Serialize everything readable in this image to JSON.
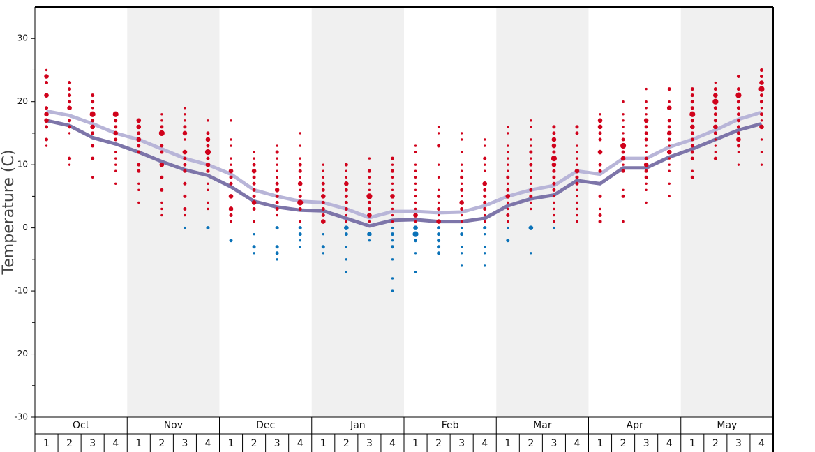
{
  "chart_data": {
    "type": "dot-strip",
    "y_label": "Temperature (C)",
    "ylim": [
      -30,
      35
    ],
    "yticks": [
      -30,
      -20,
      -10,
      0,
      10,
      20,
      30
    ],
    "minor_yticks": [
      -25,
      -15,
      -5,
      5,
      15,
      25
    ],
    "months": [
      "Oct",
      "Nov",
      "Dec",
      "Jan",
      "Feb",
      "Mar",
      "Apr",
      "May"
    ],
    "week_labels": [
      "1",
      "2",
      "3",
      "4"
    ],
    "shade_color": "#f0f0f0",
    "warm_color": "#d0021b",
    "cold_color": "#0a72b8",
    "lines": [
      {
        "color": "#b8b5d8",
        "values": [
          18.5,
          17.8,
          16.5,
          15.0,
          14.0,
          12.5,
          11.0,
          10.0,
          8.5,
          6.0,
          5.0,
          4.2,
          4.0,
          3.0,
          1.6,
          2.6,
          2.6,
          2.4,
          2.5,
          3.5,
          5.0,
          6.0,
          6.7,
          9.0,
          8.5,
          11.0,
          11.0,
          12.8,
          14.0,
          15.5,
          17.2,
          18.3
        ]
      },
      {
        "color": "#7d75a9",
        "values": [
          17.0,
          16.2,
          14.3,
          13.3,
          12.0,
          10.5,
          9.2,
          8.3,
          6.5,
          4.2,
          3.3,
          2.8,
          2.7,
          1.5,
          0.3,
          1.2,
          1.3,
          1.0,
          1.0,
          1.5,
          3.5,
          4.6,
          5.2,
          7.5,
          7.0,
          9.5,
          9.5,
          11.2,
          12.5,
          14.0,
          15.5,
          16.5
        ]
      }
    ],
    "weeks": [
      {
        "values": [
          25,
          24,
          23,
          21,
          19,
          18,
          17,
          16,
          14,
          13
        ],
        "sizes": [
          1,
          3,
          2,
          3,
          2,
          3,
          3,
          2,
          2,
          1
        ]
      },
      {
        "values": [
          23,
          22,
          21,
          20,
          19,
          17,
          16,
          15,
          11,
          10
        ],
        "sizes": [
          2,
          2,
          2,
          2,
          3,
          2,
          2,
          1,
          2,
          1
        ]
      },
      {
        "values": [
          21,
          20,
          19,
          18,
          17,
          16,
          15,
          13,
          11,
          8
        ],
        "sizes": [
          2,
          2,
          1,
          4,
          2,
          3,
          2,
          2,
          2,
          1
        ]
      },
      {
        "values": [
          18,
          17,
          16,
          15,
          14,
          12,
          11,
          10,
          9,
          7
        ],
        "sizes": [
          4,
          2,
          2,
          3,
          2,
          1,
          1,
          1,
          1,
          1
        ]
      },
      {
        "values": [
          17,
          16,
          15,
          14,
          13,
          12,
          10,
          9,
          7,
          6,
          4
        ],
        "sizes": [
          3,
          3,
          2,
          3,
          2,
          2,
          2,
          2,
          1,
          1,
          1
        ]
      },
      {
        "values": [
          18,
          17,
          16,
          15,
          13,
          12,
          10,
          8,
          6,
          4,
          3,
          2
        ],
        "sizes": [
          1,
          1,
          2,
          4,
          2,
          2,
          3,
          2,
          2,
          1,
          1,
          1
        ]
      },
      {
        "values": [
          19,
          18,
          17,
          16,
          15,
          14,
          12,
          11,
          10,
          9,
          7,
          5,
          3,
          2,
          0
        ],
        "sizes": [
          1,
          1,
          1,
          2,
          3,
          1,
          3,
          2,
          2,
          2,
          2,
          2,
          2,
          1,
          1
        ]
      },
      {
        "values": [
          17,
          15,
          14,
          13,
          12,
          11,
          10,
          9,
          7,
          6,
          4,
          3,
          0
        ],
        "sizes": [
          1,
          2,
          3,
          2,
          4,
          2,
          3,
          2,
          1,
          1,
          1,
          1,
          2
        ]
      },
      {
        "values": [
          17,
          14,
          13,
          11,
          10,
          9,
          8,
          7,
          5,
          3,
          2,
          1,
          -2
        ],
        "sizes": [
          1,
          1,
          1,
          1,
          1,
          3,
          2,
          2,
          3,
          3,
          2,
          1,
          2
        ]
      },
      {
        "values": [
          12,
          11,
          10,
          9,
          8,
          7,
          6,
          5,
          4,
          3,
          1,
          -1,
          -3,
          -4
        ],
        "sizes": [
          1,
          1,
          2,
          3,
          2,
          2,
          2,
          2,
          3,
          2,
          1,
          1,
          2,
          1
        ]
      },
      {
        "values": [
          13,
          12,
          11,
          10,
          9,
          8,
          7,
          6,
          5,
          4,
          3,
          2,
          0,
          -3,
          -4,
          -5
        ],
        "sizes": [
          1,
          2,
          1,
          1,
          1,
          1,
          2,
          3,
          2,
          2,
          2,
          1,
          2,
          2,
          2,
          1
        ]
      },
      {
        "values": [
          15,
          13,
          11,
          10,
          9,
          8,
          7,
          6,
          5,
          4,
          3,
          1,
          0,
          -1,
          -2,
          -3
        ],
        "sizes": [
          1,
          1,
          1,
          2,
          2,
          1,
          3,
          1,
          2,
          4,
          2,
          1,
          2,
          2,
          1,
          1
        ]
      },
      {
        "values": [
          10,
          9,
          8,
          7,
          6,
          5,
          4,
          3,
          2,
          1,
          -1,
          -3,
          -4
        ],
        "sizes": [
          1,
          1,
          1,
          2,
          2,
          3,
          2,
          2,
          2,
          3,
          1,
          2,
          1
        ]
      },
      {
        "values": [
          10,
          9,
          8,
          7,
          6,
          5,
          4,
          3,
          2,
          1,
          0,
          -1,
          -3,
          -5,
          -7
        ],
        "sizes": [
          2,
          1,
          1,
          3,
          2,
          2,
          2,
          2,
          1,
          1,
          3,
          2,
          1,
          1,
          1
        ]
      },
      {
        "values": [
          11,
          9,
          8,
          7,
          6,
          5,
          4,
          3,
          2,
          1,
          -1,
          -2
        ],
        "sizes": [
          1,
          2,
          1,
          1,
          1,
          4,
          2,
          2,
          3,
          1,
          3,
          1
        ]
      },
      {
        "values": [
          11,
          10,
          9,
          8,
          7,
          6,
          5,
          4,
          3,
          2,
          1,
          0,
          -1,
          -2,
          -3,
          -5,
          -8,
          -10
        ],
        "sizes": [
          2,
          1,
          2,
          1,
          1,
          1,
          3,
          1,
          1,
          1,
          1,
          1,
          2,
          1,
          2,
          1,
          1,
          1
        ]
      },
      {
        "values": [
          13,
          12,
          10,
          9,
          8,
          7,
          6,
          5,
          4,
          3,
          2,
          1,
          0,
          -1,
          -2,
          -4,
          -7
        ],
        "sizes": [
          1,
          1,
          1,
          1,
          1,
          1,
          1,
          1,
          1,
          1,
          3,
          1,
          3,
          4,
          2,
          1,
          1
        ]
      },
      {
        "values": [
          16,
          15,
          13,
          10,
          8,
          6,
          5,
          4,
          3,
          2,
          1,
          0,
          -1,
          -2,
          -3,
          -4
        ],
        "sizes": [
          1,
          1,
          2,
          1,
          1,
          1,
          2,
          1,
          2,
          1,
          3,
          2,
          2,
          2,
          2,
          2
        ]
      },
      {
        "values": [
          15,
          14,
          12,
          10,
          9,
          8,
          7,
          6,
          5,
          4,
          3,
          2,
          1,
          0,
          -1,
          -3,
          -4,
          -6
        ],
        "sizes": [
          1,
          1,
          1,
          1,
          1,
          2,
          1,
          2,
          1,
          3,
          2,
          1,
          1,
          1,
          2,
          1,
          1,
          1
        ]
      },
      {
        "values": [
          14,
          13,
          11,
          10,
          9,
          7,
          6,
          5,
          4,
          3,
          2,
          1,
          0,
          -1,
          -3,
          -4,
          -6
        ],
        "sizes": [
          1,
          1,
          2,
          1,
          1,
          3,
          2,
          2,
          2,
          2,
          1,
          1,
          2,
          1,
          1,
          1,
          1
        ]
      },
      {
        "values": [
          16,
          15,
          13,
          12,
          11,
          10,
          9,
          8,
          7,
          6,
          5,
          4,
          3,
          2,
          1,
          0,
          -2
        ],
        "sizes": [
          1,
          1,
          1,
          1,
          1,
          1,
          1,
          2,
          1,
          2,
          3,
          1,
          1,
          2,
          1,
          1,
          2
        ]
      },
      {
        "values": [
          17,
          16,
          14,
          13,
          12,
          11,
          10,
          9,
          8,
          7,
          6,
          5,
          4,
          3,
          0,
          -4
        ],
        "sizes": [
          1,
          1,
          1,
          1,
          2,
          1,
          2,
          1,
          1,
          1,
          2,
          2,
          1,
          1,
          3,
          1
        ]
      },
      {
        "values": [
          16,
          15,
          14,
          13,
          12,
          11,
          10,
          9,
          8,
          7,
          6,
          5,
          4,
          3,
          2,
          1,
          0
        ],
        "sizes": [
          2,
          2,
          3,
          3,
          2,
          4,
          3,
          2,
          2,
          2,
          2,
          1,
          1,
          1,
          1,
          1,
          1
        ]
      },
      {
        "values": [
          16,
          15,
          13,
          12,
          11,
          10,
          9,
          8,
          7,
          6,
          5,
          4,
          3,
          2,
          1
        ],
        "sizes": [
          2,
          2,
          1,
          1,
          1,
          1,
          3,
          2,
          2,
          1,
          1,
          1,
          1,
          1,
          1
        ]
      },
      {
        "values": [
          18,
          17,
          16,
          15,
          14,
          12,
          10,
          9,
          5,
          3,
          2,
          1
        ],
        "sizes": [
          1,
          3,
          3,
          2,
          2,
          3,
          2,
          2,
          2,
          1,
          2,
          2
        ]
      },
      {
        "values": [
          20,
          18,
          17,
          16,
          15,
          14,
          13,
          12,
          11,
          10,
          9,
          6,
          5,
          1
        ],
        "sizes": [
          1,
          1,
          1,
          1,
          1,
          2,
          4,
          2,
          3,
          1,
          2,
          1,
          2,
          1
        ]
      },
      {
        "values": [
          22,
          20,
          19,
          18,
          17,
          16,
          15,
          14,
          13,
          12,
          11,
          10,
          9,
          8,
          7,
          6,
          4
        ],
        "sizes": [
          1,
          1,
          1,
          1,
          3,
          2,
          2,
          2,
          1,
          1,
          2,
          3,
          2,
          2,
          1,
          1,
          1
        ]
      },
      {
        "values": [
          22,
          20,
          19,
          17,
          16,
          15,
          14,
          13,
          12,
          11,
          10,
          9,
          7,
          5
        ],
        "sizes": [
          2,
          1,
          3,
          2,
          2,
          3,
          2,
          1,
          3,
          1,
          1,
          1,
          1,
          1
        ]
      },
      {
        "values": [
          22,
          21,
          20,
          19,
          18,
          17,
          16,
          15,
          14,
          13,
          12,
          11,
          9,
          8
        ],
        "sizes": [
          2,
          2,
          2,
          2,
          4,
          2,
          3,
          2,
          2,
          2,
          2,
          2,
          1,
          2
        ]
      },
      {
        "values": [
          23,
          22,
          21,
          20,
          19,
          18,
          17,
          16,
          15,
          14,
          13,
          12,
          11
        ],
        "sizes": [
          1,
          2,
          3,
          4,
          2,
          2,
          2,
          3,
          2,
          1,
          1,
          1,
          2
        ]
      },
      {
        "values": [
          24,
          22,
          21,
          20,
          19,
          18,
          17,
          16,
          15,
          14,
          13,
          12,
          10
        ],
        "sizes": [
          2,
          2,
          4,
          2,
          2,
          2,
          2,
          2,
          2,
          3,
          2,
          1,
          1
        ]
      },
      {
        "values": [
          25,
          24,
          23,
          22,
          21,
          20,
          19,
          18,
          17,
          16,
          14,
          12,
          10
        ],
        "sizes": [
          2,
          2,
          3,
          4,
          2,
          2,
          1,
          2,
          1,
          3,
          1,
          1,
          1
        ]
      }
    ]
  }
}
